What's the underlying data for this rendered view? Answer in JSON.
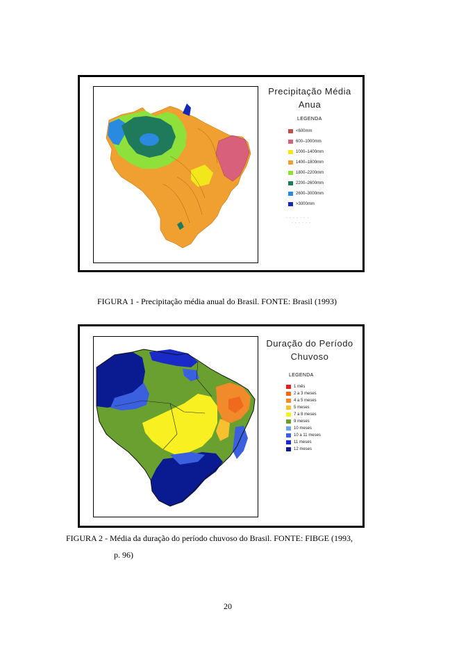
{
  "figure1": {
    "map_title": [
      "Precipitação Média",
      "Anua"
    ],
    "legend_title": "LEGENDA",
    "legend": [
      {
        "label": "<600mm",
        "color": "#c0504d"
      },
      {
        "label": "600–1000mm",
        "color": "#d9607a"
      },
      {
        "label": "1000–1400mm",
        "color": "#f2e71a"
      },
      {
        "label": "1400–1800mm",
        "color": "#f0a030"
      },
      {
        "label": "1800–2200mm",
        "color": "#8ee03a"
      },
      {
        "label": "2200–2600mm",
        "color": "#1e7a5a"
      },
      {
        "label": "2600–3000mm",
        "color": "#2a8ae0"
      },
      {
        "label": ">3000mm",
        "color": "#1428b4"
      }
    ],
    "caption": "FIGURA 1 - Precipitação média anual do Brasil. FONTE: Brasil (1993)"
  },
  "figure2": {
    "map_title": [
      "Duração do Período",
      "Chuvoso"
    ],
    "legend_title": "LEGENDA",
    "legend": [
      {
        "label": "1 mês",
        "color": "#e02020"
      },
      {
        "label": "2 a 3 meses",
        "color": "#f06a1e"
      },
      {
        "label": "4 a 5 meses",
        "color": "#f08a2a"
      },
      {
        "label": "5 meses",
        "color": "#f6c030"
      },
      {
        "label": "7 a 8 meses",
        "color": "#f8f020"
      },
      {
        "label": "9 meses",
        "color": "#6aa030"
      },
      {
        "label": "10 meses",
        "color": "#6aa0f0"
      },
      {
        "label": "10 a 11 meses",
        "color": "#3a60e0"
      },
      {
        "label": "11 meses",
        "color": "#1a2ac8"
      },
      {
        "label": "12 meses",
        "color": "#0a1a90"
      }
    ],
    "caption_line1": "FIGURA 2 - Média da duração do período chuvoso do Brasil. FONTE: FIBGE (1993,",
    "caption_line2": "p. 96)"
  },
  "page_number": "20"
}
